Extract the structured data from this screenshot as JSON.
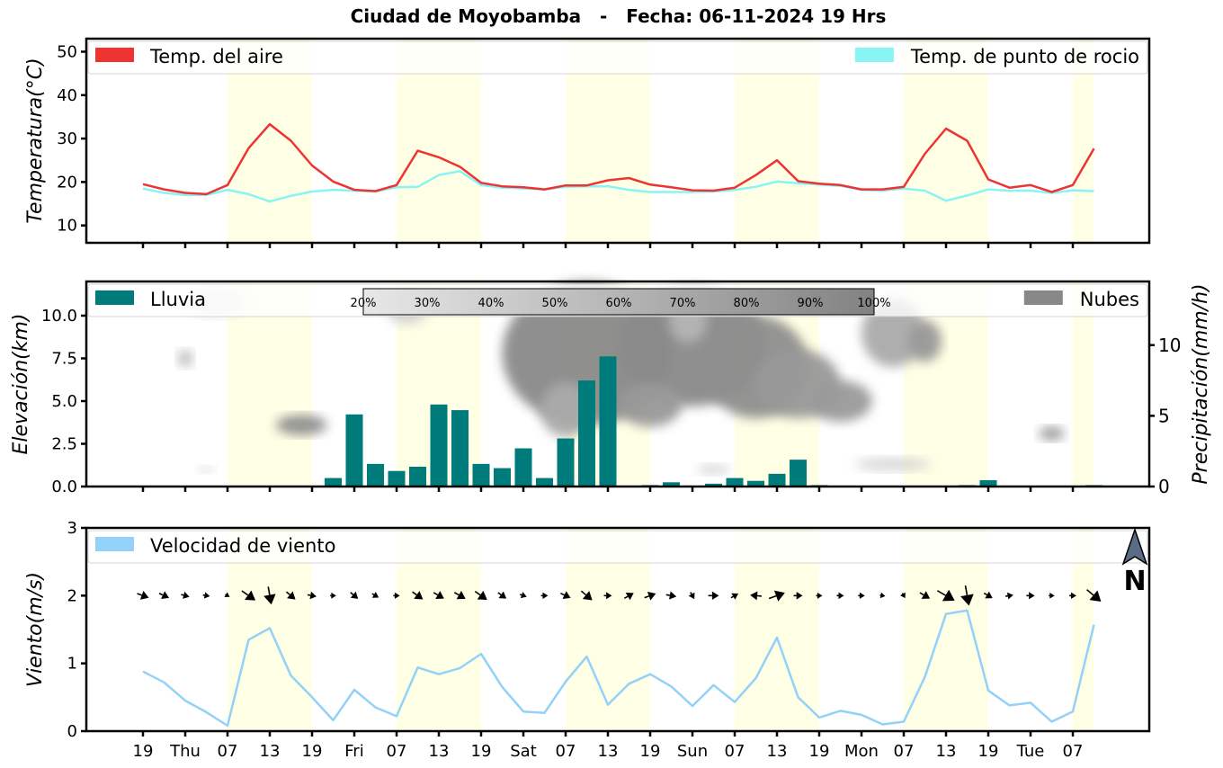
{
  "title": "Ciudad de Moyobamba   -   Fecha: 06-11-2024 19 Hrs",
  "colors": {
    "air_temp": "#ee3333",
    "dew_point": "#88f4f4",
    "rain": "#007b7b",
    "clouds": "#888888",
    "wind": "#93d1f9",
    "day_shade": "#ffffe0"
  },
  "x_tick_labels": [
    "19",
    "Thu",
    "07",
    "13",
    "19",
    "Fri",
    "07",
    "13",
    "19",
    "Sat",
    "07",
    "13",
    "19",
    "Sun",
    "07",
    "13",
    "19",
    "Mon",
    "07",
    "13",
    "19",
    "Tue",
    "07"
  ],
  "compass_label": "N",
  "compass_icon": "north-arrow-icon",
  "chart_data": [
    {
      "type": "line",
      "ylabel": "Temperatura(°C)",
      "ylim": [
        6,
        53
      ],
      "yticks": [
        10,
        20,
        30,
        40,
        50
      ],
      "legend": {
        "left": "Temp. del aire",
        "right": "Temp. de punto de rocio"
      },
      "x_hours": "3-hour steps from 06-11 19 Hrs",
      "series": [
        {
          "name": "Temp. del aire",
          "values": [
            19.5,
            18.3,
            17.5,
            17.2,
            19.3,
            27.8,
            33.3,
            29.5,
            23.8,
            20.1,
            18.2,
            17.9,
            19.3,
            27.2,
            25.7,
            23.5,
            19.8,
            19.0,
            18.8,
            18.3,
            19.2,
            19.2,
            20.4,
            20.9,
            19.4,
            18.8,
            18.1,
            18.0,
            18.7,
            21.6,
            25.0,
            20.2,
            19.6,
            19.3,
            18.3,
            18.3,
            18.9,
            26.5,
            32.3,
            29.5,
            20.6,
            18.7,
            19.3,
            17.7,
            19.3,
            27.7
          ]
        },
        {
          "name": "Temp. de punto de rocio",
          "values": [
            18.5,
            17.5,
            17.0,
            17.0,
            18.2,
            17.2,
            15.5,
            16.8,
            17.8,
            18.2,
            18.0,
            17.8,
            18.8,
            18.9,
            21.6,
            22.5,
            19.3,
            18.7,
            18.5,
            18.3,
            18.9,
            19.0,
            19.0,
            18.2,
            17.7,
            17.7,
            17.7,
            17.8,
            18.2,
            18.9,
            20.1,
            19.7,
            19.4,
            19.1,
            18.2,
            18.0,
            18.5,
            18.0,
            15.7,
            16.9,
            18.3,
            18.0,
            18.0,
            17.5,
            18.1,
            17.9
          ]
        }
      ]
    },
    {
      "type": "bar",
      "ylabel": "Elevación(km)",
      "ylim": [
        0,
        12
      ],
      "yticks": [
        0.0,
        2.5,
        5.0,
        7.5,
        10.0
      ],
      "ylabel_right": "Precipitación(mm/h)",
      "ylim_right": [
        0,
        14.5
      ],
      "yticks_right": [
        0,
        5,
        10
      ],
      "legend": {
        "left": "Lluvia",
        "right": "Nubes"
      },
      "colorbar_labels": [
        "20%",
        "30%",
        "40%",
        "50%",
        "60%",
        "70%",
        "80%",
        "90%",
        "100%"
      ],
      "series": [
        {
          "name": "Lluvia",
          "values": [
            0,
            0,
            0,
            0,
            0,
            0,
            0,
            0,
            0,
            0.6,
            5.1,
            1.6,
            1.1,
            1.4,
            5.8,
            5.4,
            1.6,
            1.3,
            2.7,
            0.6,
            3.4,
            7.5,
            9.2,
            0,
            0.1,
            0.3,
            0,
            0.2,
            0.6,
            0.4,
            0.9,
            1.9,
            0.1,
            0.05,
            0.05,
            0,
            0.05,
            0.05,
            0.05,
            0.1,
            0.45,
            0.05,
            0.05,
            0.05,
            0.05,
            0.1
          ]
        }
      ]
    },
    {
      "type": "line",
      "ylabel": "Viento(m/s)",
      "ylim": [
        0,
        3
      ],
      "yticks": [
        0,
        1,
        2,
        3
      ],
      "legend": {
        "left": "Velocidad de viento"
      },
      "series": [
        {
          "name": "Velocidad de viento",
          "values": [
            0.88,
            0.72,
            0.45,
            0.28,
            0.08,
            1.35,
            1.52,
            0.82,
            0.5,
            0.16,
            0.61,
            0.35,
            0.22,
            0.94,
            0.84,
            0.93,
            1.14,
            0.65,
            0.29,
            0.27,
            0.73,
            1.1,
            0.39,
            0.7,
            0.84,
            0.66,
            0.37,
            0.68,
            0.43,
            0.78,
            1.38,
            0.5,
            0.2,
            0.3,
            0.24,
            0.1,
            0.14,
            0.8,
            1.73,
            1.78,
            0.6,
            0.38,
            0.42,
            0.14,
            0.29,
            1.57
          ]
        }
      ]
    }
  ]
}
